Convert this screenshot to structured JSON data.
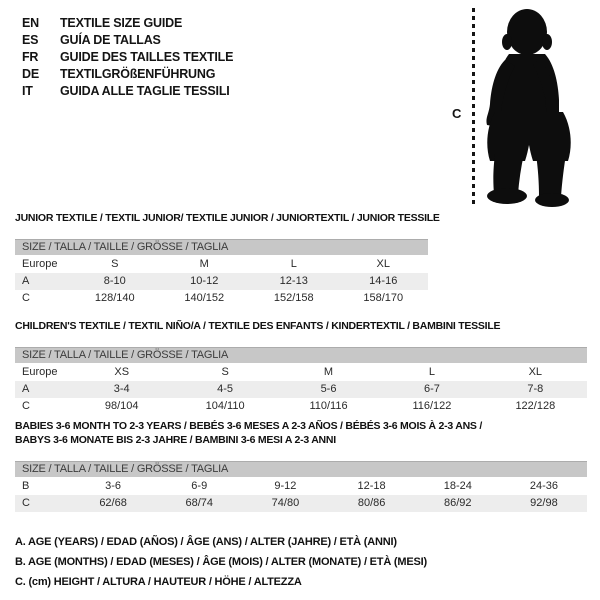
{
  "page": {
    "background": "#ffffff"
  },
  "colors": {
    "header_bar": "#c7c7c7",
    "alt_row": "#ededed",
    "text": "#1f1f1f",
    "silhouette": "#0d0d0d"
  },
  "language_header": {
    "items": [
      {
        "code": "EN",
        "title": "TEXTILE SIZE GUIDE"
      },
      {
        "code": "ES",
        "title": "GUÍA DE TALLAS"
      },
      {
        "code": "FR",
        "title": "GUIDE DES TAILLES TEXTILE"
      },
      {
        "code": "DE",
        "title": "TEXTILGRÖßENFÜHRUNG"
      },
      {
        "code": "IT",
        "title": "GUIDA ALLE TAGLIE TESSILI"
      }
    ]
  },
  "figure": {
    "icon": "baby-silhouette",
    "height_label": "C"
  },
  "tables": [
    {
      "title_lines": [
        "JUNIOR TEXTILE / TEXTIL JUNIOR/ TEXTILE JUNIOR / JUNIORTEXTIL / JUNIOR TESSILE"
      ],
      "size_header": "SIZE / TALLA / TAILLE / GRÖSSE / TAGLIA",
      "rows": [
        {
          "label": "Europe",
          "values": [
            "S",
            "M",
            "L",
            "XL"
          ]
        },
        {
          "label": "A",
          "values": [
            "8-10",
            "10-12",
            "12-13",
            "14-16"
          ]
        },
        {
          "label": "C",
          "values": [
            "128/140",
            "140/152",
            "152/158",
            "158/170"
          ]
        }
      ]
    },
    {
      "title_lines": [
        "CHILDREN'S TEXTILE / TEXTIL NIÑO/A / TEXTILE DES ENFANTS / KINDERTEXTIL / BAMBINI TESSILE"
      ],
      "size_header": "SIZE / TALLA / TAILLE / GRÖSSE / TAGLIA",
      "rows": [
        {
          "label": "Europe",
          "values": [
            "XS",
            "S",
            "M",
            "L",
            "XL"
          ]
        },
        {
          "label": "A",
          "values": [
            "3-4",
            "4-5",
            "5-6",
            "6-7",
            "7-8"
          ]
        },
        {
          "label": "C",
          "values": [
            "98/104",
            "104/110",
            "110/116",
            "116/122",
            "122/128"
          ]
        }
      ]
    },
    {
      "title_lines": [
        "BABIES 3-6 MONTH TO 2-3 YEARS / BEBÉS 3-6 MESES A 2-3 AÑOS / BÉBÉS 3-6 MOIS À 2-3 ANS /",
        "BABYS 3-6 MONATE BIS 2-3 JAHRE / BAMBINI 3-6 MESI A 2-3 ANNI"
      ],
      "size_header": "SIZE / TALLA / TAILLE / GRÖSSE / TAGLIA",
      "rows": [
        {
          "label": "B",
          "values": [
            "3-6",
            "6-9",
            "9-12",
            "12-18",
            "18-24",
            "24-36"
          ]
        },
        {
          "label": "C",
          "values": [
            "62/68",
            "68/74",
            "74/80",
            "80/86",
            "86/92",
            "92/98"
          ]
        }
      ]
    }
  ],
  "footnotes": [
    "A. AGE (YEARS) / EDAD (AÑOS) / ÂGE (ANS) / ALTER (JAHRE) / ETÀ (ANNI)",
    "B. AGE (MONTHS) / EDAD (MESES) / ÂGE (MOIS) / ALTER (MONATE) / ETÀ (MESI)",
    "C. (cm) HEIGHT / ALTURA / HAUTEUR / HÖHE / ALTEZZA"
  ]
}
